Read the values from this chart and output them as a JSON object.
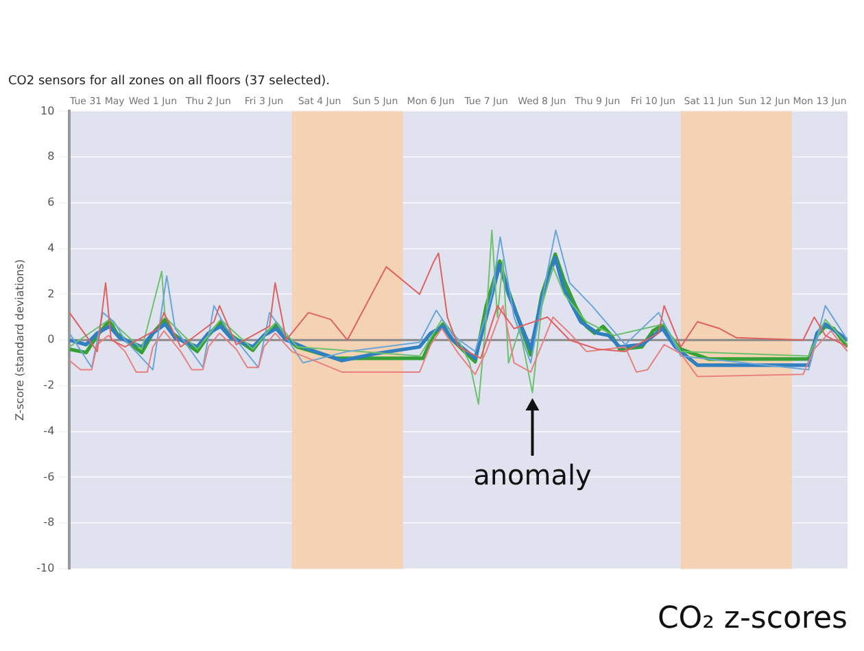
{
  "chart_data": {
    "type": "line",
    "title": "CO2 sensors for all zones on all floors (37 selected).",
    "ylabel": "Z-score (standard deviations)",
    "xlim": [
      "--05-31T00:00",
      "--06-14T00:00"
    ],
    "xticks": [
      {
        "value": "--05-31T12:00",
        "label": "Tue 31 May"
      },
      {
        "value": "--06-01T12:00",
        "label": "Wed 1 Jun"
      },
      {
        "value": "--06-02T12:00",
        "label": "Thu 2 Jun"
      },
      {
        "value": "--06-03T12:00",
        "label": "Fri 3 Jun"
      },
      {
        "value": "--06-04T12:00",
        "label": "Sat 4 Jun"
      },
      {
        "value": "--06-05T12:00",
        "label": "Sun 5 Jun"
      },
      {
        "value": "--06-06T12:00",
        "label": "Mon 6 Jun"
      },
      {
        "value": "--06-07T12:00",
        "label": "Tue 7 Jun"
      },
      {
        "value": "--06-08T12:00",
        "label": "Wed 8 Jun"
      },
      {
        "value": "--06-09T12:00",
        "label": "Thu 9 Jun"
      },
      {
        "value": "--06-10T12:00",
        "label": "Fri 10 Jun"
      },
      {
        "value": "--06-11T12:00",
        "label": "Sat 11 Jun"
      },
      {
        "value": "--06-12T12:00",
        "label": "Sun 12 Jun"
      },
      {
        "value": "--06-13T12:00",
        "label": "Mon 13 Jun"
      }
    ],
    "ylim": [
      -10,
      10
    ],
    "yticks": [
      -10,
      -8,
      -6,
      -4,
      -2,
      0,
      2,
      4,
      6,
      8,
      10
    ],
    "grid": "y",
    "legend": false,
    "marker": "none",
    "line_style": "solid",
    "bands": [
      {
        "axis": "x",
        "from": "--06-04T00:00",
        "to": "--06-06T00:00",
        "color": "#f3d3b4"
      },
      {
        "axis": "x",
        "from": "--06-11T00:00",
        "to": "--06-13T00:00",
        "color": "#f3d3b4"
      }
    ],
    "ref_lines": [
      {
        "axis": "y",
        "value": 0,
        "color": "#8a8a8a"
      }
    ],
    "annotations": [
      {
        "text": "anomaly",
        "x": "--06-08T07:55",
        "y": -2.3
      },
      "CO₂ z-scores"
    ],
    "series": [
      {
        "color": "#e06060",
        "x": [
          "--05-31T00:00",
          "--05-31T12:00",
          "--05-31T15:36",
          "--05-31T18:00",
          "--06-01T00:00",
          "--06-01T14:24",
          "--06-01T16:48",
          "--06-02T00:00",
          "--06-02T14:24",
          "--06-02T16:48",
          "--06-03T00:00",
          "--06-03T14:24",
          "--06-03T16:48",
          "--06-03T21:36",
          "--06-04T07:12",
          "--06-04T16:48",
          "--06-05T00:00",
          "--06-05T16:48",
          "--06-06T07:12",
          "--06-06T13:12",
          "--06-06T15:22",
          "--06-06T19:12",
          "--06-07T00:00",
          "--06-07T09:36",
          "--06-07T16:48",
          "--06-08T00:00",
          "--06-08T14:24",
          "--06-09T00:00",
          "--06-09T12:00",
          "--06-10T00:00",
          "--06-10T14:24",
          "--06-10T16:48",
          "--06-11T00:00",
          "--06-11T07:12",
          "--06-11T16:48",
          "--06-12T00:00",
          "--06-13T04:48",
          "--06-13T09:36",
          "--06-13T14:24",
          "--06-14T00:00"
        ],
        "values": [
          1.2,
          -0.5,
          2.5,
          0,
          -0.3,
          0.5,
          1.2,
          -0.3,
          0.8,
          1.5,
          -0.2,
          0.6,
          2.5,
          0,
          1.2,
          0.9,
          0,
          3.2,
          2.0,
          3.4,
          3.8,
          1.0,
          -0.3,
          -0.8,
          1.5,
          0.5,
          1.0,
          0,
          -0.4,
          -0.5,
          0.3,
          1.5,
          -0.3,
          0.8,
          0.5,
          0.1,
          0,
          1.0,
          0.2,
          -0.3
        ]
      },
      {
        "color": "#e88080",
        "x": [
          "--05-31T00:00",
          "--05-31T04:48",
          "--05-31T09:36",
          "--05-31T12:00",
          "--05-31T16:48",
          "--06-01T00:00",
          "--06-01T04:48",
          "--06-01T09:36",
          "--06-01T12:00",
          "--06-01T16:48",
          "--06-02T00:00",
          "--06-02T04:48",
          "--06-02T09:36",
          "--06-02T12:00",
          "--06-02T16:48",
          "--06-03T00:00",
          "--06-03T04:48",
          "--06-03T09:36",
          "--06-03T12:00",
          "--06-03T16:48",
          "--06-04T00:00",
          "--06-04T21:36",
          "--06-06T07:12",
          "--06-06T12:00",
          "--06-06T16:48",
          "--06-07T00:00",
          "--06-07T07:12",
          "--06-07T12:00",
          "--06-07T19:12",
          "--06-08T00:00",
          "--06-08T07:12",
          "--06-08T16:48",
          "--06-09T00:00",
          "--06-09T07:12",
          "--06-10T00:00",
          "--06-10T04:48",
          "--06-10T09:36",
          "--06-10T16:48",
          "--06-11T00:00",
          "--06-11T07:12",
          "--06-13T04:48",
          "--06-13T09:36",
          "--06-13T16:48",
          "--06-14T00:00"
        ],
        "values": [
          -0.9,
          -1.3,
          -1.3,
          -0.2,
          0.2,
          -0.5,
          -1.4,
          -1.4,
          -0.3,
          0.4,
          -0.5,
          -1.3,
          -1.3,
          -0.3,
          0.3,
          -0.4,
          -1.2,
          -1.2,
          -0.3,
          0.3,
          -0.5,
          -1.4,
          -1.4,
          -0.2,
          0.5,
          -0.6,
          -1.5,
          -0.5,
          1.5,
          -1.0,
          -1.4,
          1.0,
          0.3,
          -0.5,
          -0.3,
          -1.4,
          -1.3,
          -0.2,
          -0.6,
          -1.6,
          -1.5,
          -0.4,
          0.4,
          -0.5
        ]
      },
      {
        "color": "#6aa5d8",
        "x": [
          "--05-31T00:00",
          "--05-31T09:36",
          "--05-31T14:24",
          "--05-31T19:12",
          "--06-01T00:00",
          "--06-01T12:00",
          "--06-01T18:00",
          "--06-01T21:36",
          "--06-02T09:36",
          "--06-02T14:24",
          "--06-02T19:12",
          "--06-03T09:36",
          "--06-03T14:24",
          "--06-03T19:12",
          "--06-04T04:48",
          "--06-05T00:00",
          "--06-06T07:12",
          "--06-06T14:24",
          "--06-06T21:36",
          "--06-07T07:12",
          "--06-07T14:24",
          "--06-07T18:00",
          "--06-08T00:00",
          "--06-08T07:12",
          "--06-08T14:24",
          "--06-08T18:00",
          "--06-09T00:00",
          "--06-09T09:36",
          "--06-10T00:00",
          "--06-10T14:24",
          "--06-11T00:00",
          "--06-13T07:12",
          "--06-13T14:24",
          "--06-14T00:00"
        ],
        "values": [
          0.3,
          -1.2,
          1.2,
          0.8,
          0,
          -1.3,
          2.8,
          0.5,
          -1.2,
          1.5,
          0.6,
          -1.2,
          1.2,
          0.5,
          -1.0,
          -0.5,
          -0.1,
          1.3,
          0.2,
          -0.5,
          2.0,
          4.5,
          1.0,
          -1.0,
          3.0,
          4.8,
          2.5,
          1.5,
          -0.2,
          1.2,
          -0.7,
          -1.3,
          1.5,
          0
        ]
      },
      {
        "color": "#6cc26c",
        "x": [
          "--05-31T00:00",
          "--05-31T17:17",
          "--06-01T07:12",
          "--06-01T15:50",
          "--06-01T17:17",
          "--06-02T07:12",
          "--06-02T17:17",
          "--06-03T07:12",
          "--06-03T17:17",
          "--06-04T02:24",
          "--06-06T07:12",
          "--06-06T16:48",
          "--06-07T00:00",
          "--06-07T04:48",
          "--06-07T08:38",
          "--06-07T12:00",
          "--06-07T14:24",
          "--06-07T16:48",
          "--06-07T19:12",
          "--06-07T21:36",
          "--06-08T02:24",
          "--06-08T07:55",
          "--06-08T12:00",
          "--06-08T16:48",
          "--06-08T21:36",
          "--06-09T07:12",
          "--06-09T19:12",
          "--06-10T16:48",
          "--06-11T00:00",
          "--06-13T07:12",
          "--06-13T14:24",
          "--06-14T00:00"
        ],
        "values": [
          -0.3,
          0.9,
          -0.4,
          3.0,
          1.0,
          -0.4,
          0.9,
          -0.4,
          0.8,
          -0.3,
          -0.7,
          0.9,
          0,
          -1.0,
          -2.8,
          1.0,
          4.8,
          1.0,
          3.5,
          -1.0,
          0.5,
          -2.3,
          1.5,
          3.2,
          2.0,
          0.8,
          0.2,
          0.7,
          -0.5,
          -0.7,
          0.9,
          -0.2
        ]
      },
      {
        "color": "#2f7fc1",
        "x": [
          "--05-31T00:00",
          "--05-31T07:12",
          "--05-31T12:00",
          "--05-31T17:17",
          "--05-31T21:36",
          "--06-01T07:12",
          "--06-01T12:00",
          "--06-01T17:17",
          "--06-01T21:36",
          "--06-02T07:12",
          "--06-02T12:00",
          "--06-02T17:17",
          "--06-02T21:36",
          "--06-03T07:12",
          "--06-03T12:00",
          "--06-03T17:17",
          "--06-03T21:36",
          "--06-04T07:12",
          "--06-04T21:36",
          "--06-05T12:00",
          "--06-06T07:12",
          "--06-06T12:00",
          "--06-06T17:17",
          "--06-06T21:36",
          "--06-07T07:12",
          "--06-07T12:00",
          "--06-07T17:46",
          "--06-07T21:36",
          "--06-08T07:12",
          "--06-08T12:00",
          "--06-08T17:46",
          "--06-08T21:36",
          "--06-09T04:48",
          "--06-09T12:00",
          "--06-09T16:48",
          "--06-09T21:36",
          "--06-10T07:12",
          "--06-10T16:05",
          "--06-10T21:36",
          "--06-11T07:12",
          "--06-13T07:12",
          "--06-13T10:48",
          "--06-13T14:24",
          "--06-14T00:00"
        ],
        "values": [
          0,
          -0.2,
          0.3,
          0.6,
          0.1,
          -0.3,
          0.3,
          0.7,
          0.1,
          -0.3,
          0.3,
          0.6,
          0.1,
          -0.3,
          0.2,
          0.5,
          0,
          -0.4,
          -0.9,
          -0.6,
          -0.3,
          0.3,
          0.6,
          0,
          -0.8,
          1.0,
          3.3,
          2.0,
          -0.4,
          1.8,
          3.6,
          2.2,
          0.8,
          0.3,
          0.2,
          -0.3,
          -0.2,
          0.5,
          -0.3,
          -1.1,
          -1.1,
          0.3,
          0.7,
          0
        ]
      },
      {
        "color": "#35a035",
        "x": [
          "--05-31T00:00",
          "--05-31T07:12",
          "--05-31T12:00",
          "--05-31T17:17",
          "--05-31T20:24",
          "--06-01T07:12",
          "--06-01T12:00",
          "--06-01T17:17",
          "--06-01T20:24",
          "--06-02T07:12",
          "--06-02T12:00",
          "--06-02T17:17",
          "--06-02T20:24",
          "--06-03T07:12",
          "--06-03T12:00",
          "--06-03T17:17",
          "--06-03T20:24",
          "--06-04T02:24",
          "--06-04T19:12",
          "--06-06T08:38",
          "--06-06T13:12",
          "--06-06T17:17",
          "--06-06T20:24",
          "--06-07T07:12",
          "--06-07T12:00",
          "--06-07T17:46",
          "--06-07T20:24",
          "--06-08T07:12",
          "--06-08T12:00",
          "--06-08T17:46",
          "--06-08T21:36",
          "--06-09T02:24",
          "--06-09T07:12",
          "--06-09T10:48",
          "--06-09T14:24",
          "--06-09T18:00",
          "--06-09T21:36",
          "--06-10T07:12",
          "--06-10T12:00",
          "--06-10T16:05",
          "--06-10T19:12",
          "--06-11T00:00",
          "--06-11T12:00",
          "--06-13T07:12",
          "--06-13T10:48",
          "--06-13T14:24",
          "--06-13T18:00",
          "--06-14T00:00"
        ],
        "values": [
          -0.4,
          -0.55,
          0.2,
          0.85,
          0.3,
          -0.55,
          0.3,
          0.9,
          0.3,
          -0.5,
          0.2,
          0.8,
          0.3,
          -0.45,
          0.2,
          0.7,
          0.2,
          -0.3,
          -0.8,
          -0.8,
          0.2,
          0.7,
          0.1,
          -0.95,
          1.5,
          3.45,
          2.5,
          -0.65,
          2.0,
          3.75,
          2.6,
          1.5,
          0.6,
          0.3,
          0.6,
          0.2,
          -0.4,
          -0.3,
          0.4,
          0.65,
          0.2,
          -0.4,
          -0.83,
          -0.83,
          0.2,
          0.6,
          0.5,
          -0.3
        ]
      }
    ]
  }
}
